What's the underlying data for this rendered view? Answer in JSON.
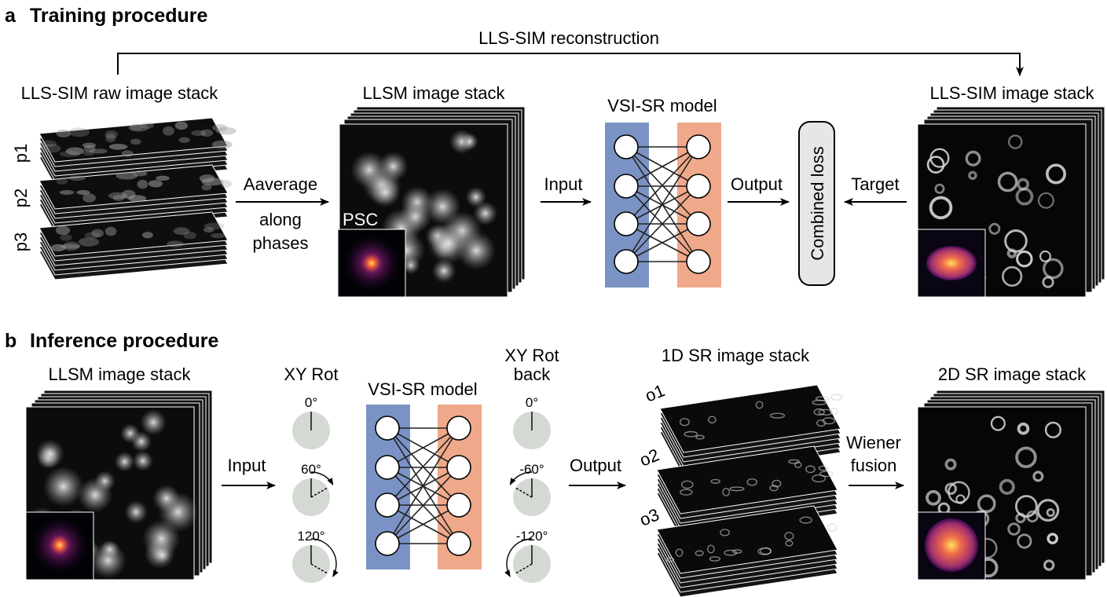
{
  "colors": {
    "net_input_layer": "#7b93c4",
    "net_output_layer": "#efa98a",
    "rotation_disc": "#d4d9d3",
    "image_background": "#050505",
    "psf_inner": "#ffdf5a",
    "psf_outer": "#5a1a6e"
  },
  "panel_a": {
    "letter": "a",
    "title": "Training procedure",
    "reconstruction_label": "LLS-SIM reconstruction",
    "raw_stack_label": "LLS-SIM raw image stack",
    "phase_labels": [
      "p1",
      "p2",
      "p3"
    ],
    "average_label_line1": "Aaverage",
    "average_label_line2": "along",
    "average_label_line3": "phases",
    "llsm_stack_label": "LLSM image stack",
    "psc_label": "PSC",
    "input_label": "Input",
    "model_label": "VSI-SR model",
    "output_label": "Output",
    "loss_label": "Combined loss",
    "target_label": "Target",
    "sim_stack_label": "LLS-SIM image stack"
  },
  "panel_b": {
    "letter": "b",
    "title": "Inference procedure",
    "llsm_stack_label": "LLSM image stack",
    "input_label": "Input",
    "rot_label": "XY Rot",
    "rot_angles": [
      "0°",
      "60°",
      "120°"
    ],
    "model_label": "VSI-SR model",
    "rot_back_label_line1": "XY Rot",
    "rot_back_label_line2": "back",
    "rot_back_angles": [
      "0°",
      "-60°",
      "-120°"
    ],
    "output_label": "Output",
    "sr1d_stack_label": "1D SR image stack",
    "orientation_labels": [
      "o1",
      "o2",
      "o3"
    ],
    "wiener_label_line1": "Wiener",
    "wiener_label_line2": "fusion",
    "sr2d_stack_label": "2D SR image stack"
  }
}
